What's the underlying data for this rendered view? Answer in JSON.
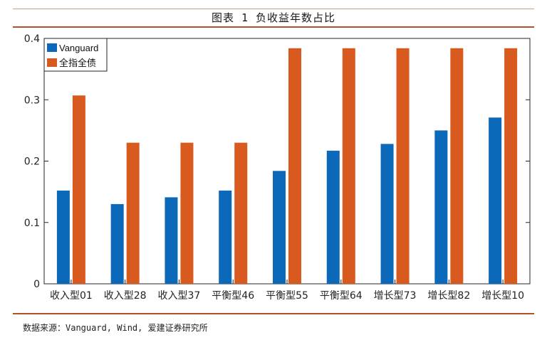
{
  "header": {
    "title": "图表 1 负收益年数占比"
  },
  "footer": {
    "source": "数据来源：Vanguard, Wind, 爱建证券研究所"
  },
  "colors": {
    "vanguard": "#0C68B8",
    "index": "#D85A1E",
    "rule": "#b4502b"
  },
  "chart_data": {
    "type": "bar",
    "title": "",
    "xlabel": "",
    "ylabel": "",
    "categories": [
      "收入型01",
      "收入型28",
      "收入型37",
      "平衡型46",
      "平衡型55",
      "平衡型64",
      "增长型73",
      "增长型82",
      "增长型10"
    ],
    "series": [
      {
        "name": "Vanguard",
        "values": [
          0.152,
          0.13,
          0.141,
          0.152,
          0.184,
          0.217,
          0.228,
          0.25,
          0.271
        ]
      },
      {
        "name": "全指全债",
        "values": [
          0.307,
          0.23,
          0.23,
          0.23,
          0.384,
          0.384,
          0.384,
          0.384,
          0.384
        ]
      }
    ],
    "ylim": [
      0,
      0.4
    ],
    "yticks": [
      0,
      0.1,
      0.2,
      0.3,
      0.4
    ],
    "ytick_labels": [
      "0",
      "0.1",
      "0.2",
      "0.3",
      "0.4"
    ],
    "legend_position": "top-left",
    "grid": false
  }
}
